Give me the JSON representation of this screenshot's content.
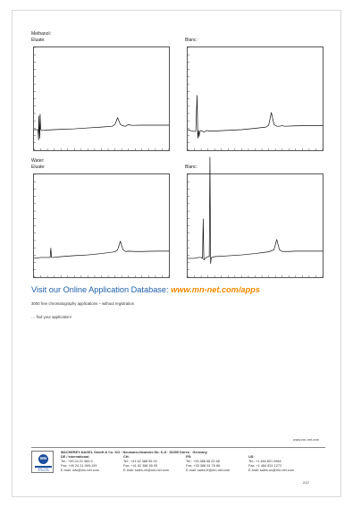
{
  "sections": {
    "methanol": {
      "solvent": "Methanol:",
      "eluate_label": "Eluate:",
      "blank_label": "Blanc:"
    },
    "water": {
      "solvent": "Water:",
      "eluate_label": "Eluate:",
      "blank_label": "Blanc:"
    }
  },
  "chart_data": [
    {
      "type": "line",
      "series": [
        {
          "x": [
            0,
            3,
            3.4,
            3.6,
            4,
            4.3,
            4.6,
            5,
            6,
            10,
            20,
            30,
            40,
            50,
            58,
            60,
            62,
            64,
            66,
            68,
            70,
            72,
            80,
            90,
            100
          ],
          "y": [
            2,
            2,
            -4,
            10,
            2,
            -3,
            11,
            2,
            1.5,
            1.8,
            2.2,
            2.5,
            3,
            3.5,
            4,
            5,
            9,
            5,
            4.2,
            4,
            5,
            4.5,
            4.6,
            4.6,
            4.6
          ]
        }
      ],
      "xlim": [
        0,
        100
      ],
      "ylim": [
        -10,
        50
      ]
    },
    {
      "type": "line",
      "series": [
        {
          "x": [
            0,
            2,
            4,
            6,
            7,
            7.5,
            8,
            8.5,
            9,
            10,
            12,
            14,
            16,
            20,
            30,
            40,
            50,
            58,
            60,
            62,
            64,
            66,
            68,
            70,
            72,
            80,
            90,
            100
          ],
          "y": [
            2,
            1.5,
            1,
            1,
            22,
            -3,
            1.5,
            -2,
            1,
            1.5,
            0.5,
            1.5,
            1.2,
            1.2,
            1.6,
            2,
            2.8,
            3.5,
            4.5,
            12,
            5,
            4,
            4,
            4.3,
            4,
            4.2,
            4.4,
            4.4
          ]
        }
      ],
      "xlim": [
        0,
        100
      ],
      "ylim": [
        -10,
        50
      ]
    },
    {
      "type": "line",
      "series": [
        {
          "x": [
            0,
            5,
            10,
            12,
            12.5,
            13,
            14,
            20,
            30,
            40,
            50,
            60,
            62,
            64,
            66,
            68,
            70,
            75,
            80,
            90,
            100
          ],
          "y": [
            1,
            1.5,
            1.5,
            1.5,
            7,
            1.5,
            1.5,
            2,
            2.6,
            3,
            3.8,
            4.8,
            6,
            11,
            6,
            5,
            5.2,
            5,
            5,
            5.2,
            5.2
          ]
        }
      ],
      "xlim": [
        0,
        100
      ],
      "ylim": [
        -10,
        50
      ]
    },
    {
      "type": "line",
      "series": [
        {
          "x": [
            0,
            5,
            8,
            10,
            11,
            11.5,
            12,
            13,
            14,
            15,
            16,
            16.5,
            17,
            17.5,
            18,
            20,
            30,
            40,
            50,
            60,
            64,
            66,
            68,
            70,
            75,
            80,
            90,
            100
          ],
          "y": [
            1,
            1,
            1.5,
            1.5,
            1,
            24,
            0,
            1,
            1.5,
            2,
            2,
            60,
            -2,
            1.5,
            1.5,
            2,
            2.5,
            3,
            3.8,
            4.8,
            6,
            12,
            6,
            5,
            5,
            5.2,
            5.2,
            5.2
          ]
        }
      ],
      "xlim": [
        0,
        100
      ],
      "ylim": [
        -10,
        50
      ]
    }
  ],
  "banner": {
    "text": "Visit our Online Application Database: ",
    "url": "www.mn-net.com/apps",
    "line1": "3000 free chromatography applications – without registration",
    "line2": "… find your application!"
  },
  "footer": {
    "website": "www.mn-net.com",
    "company": "MACHEREY-NAGEL GmbH & Co. KG · Neumann-Neander-Str. 6–8 · 52355 Düren · Germany",
    "logo_text": "MN",
    "logo_caption": "ANALYTICAL TECHNIQUES",
    "columns": [
      {
        "region": "DE / International:",
        "tel": "Tel.:   +49 24 21 969-0",
        "fax": "Fax:   +49 24 21 969-199",
        "email": "E-mail:   info@mn-net.com"
      },
      {
        "region": "CH:",
        "tel": "Tel.:   +41 62 388 55 00",
        "fax": "Fax:   +41 62 388 55 05",
        "email": "E-mail:   sales-ch@mn-net.com"
      },
      {
        "region": "FR:",
        "tel": "Tel.:   +33 388 68 22 68",
        "fax": "Fax:   +33 388 51 76 88",
        "email": "E-mail:   sales-fr@mn-net.com"
      },
      {
        "region": "US:",
        "tel": "Tel.:   +1 484 821 0984",
        "fax": "Fax:   +1 484 821 1272",
        "email": "E-mail:   sales-us@mn-net.com"
      }
    ],
    "page_number": "212"
  }
}
